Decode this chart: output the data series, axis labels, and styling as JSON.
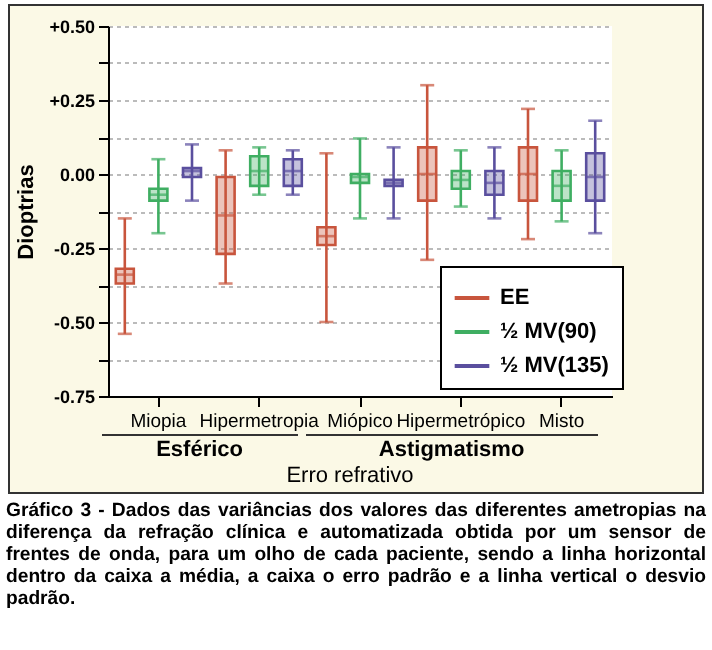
{
  "chart_data": {
    "type": "box",
    "ylabel": "Dioptrias",
    "xlabel": "Erro refrativo",
    "categories": [
      "Miopia",
      "Hipermetropia",
      "Miópico",
      "Hipermetrópico",
      "Misto"
    ],
    "series": [
      {
        "name": "EE",
        "color": "#c8553d",
        "boxes": [
          {
            "low": -0.54,
            "q1": -0.37,
            "median": -0.34,
            "q3": -0.32,
            "high": -0.15
          },
          {
            "low": -0.37,
            "q1": -0.27,
            "median": -0.14,
            "q3": -0.01,
            "high": 0.08
          },
          {
            "low": -0.5,
            "q1": -0.24,
            "median": -0.21,
            "q3": -0.18,
            "high": 0.07
          },
          {
            "low": -0.29,
            "q1": -0.09,
            "median": 0.0,
            "q3": 0.09,
            "high": 0.3
          },
          {
            "low": -0.22,
            "q1": -0.09,
            "median": 0.0,
            "q3": 0.09,
            "high": 0.22
          }
        ]
      },
      {
        "name": "½ MV(90)",
        "color": "#3fae62",
        "boxes": [
          {
            "low": -0.2,
            "q1": -0.09,
            "median": -0.07,
            "q3": -0.05,
            "high": 0.05
          },
          {
            "low": -0.07,
            "q1": -0.04,
            "median": 0.01,
            "q3": 0.06,
            "high": 0.09
          },
          {
            "low": -0.15,
            "q1": -0.03,
            "median": -0.01,
            "q3": 0.0,
            "high": 0.12
          },
          {
            "low": -0.11,
            "q1": -0.05,
            "median": -0.02,
            "q3": 0.01,
            "high": 0.08
          },
          {
            "low": -0.16,
            "q1": -0.09,
            "median": -0.04,
            "q3": 0.01,
            "high": 0.08
          }
        ]
      },
      {
        "name": "½ MV(135)",
        "color": "#5a4f9e",
        "boxes": [
          {
            "low": -0.09,
            "q1": -0.01,
            "median": 0.01,
            "q3": 0.02,
            "high": 0.1
          },
          {
            "low": -0.07,
            "q1": -0.04,
            "median": 0.01,
            "q3": 0.05,
            "high": 0.08
          },
          {
            "low": -0.15,
            "q1": -0.04,
            "median": -0.03,
            "q3": -0.02,
            "high": 0.09
          },
          {
            "low": -0.15,
            "q1": -0.07,
            "median": -0.03,
            "q3": 0.01,
            "high": 0.09
          },
          {
            "low": -0.2,
            "q1": -0.09,
            "median": -0.01,
            "q3": 0.07,
            "high": 0.18
          }
        ]
      }
    ],
    "ylim": [
      -0.75,
      0.5
    ],
    "yticks": [
      {
        "value": 0.5,
        "label": "+0.50"
      },
      {
        "value": 0.375,
        "label": null
      },
      {
        "value": 0.25,
        "label": "+0.25"
      },
      {
        "value": 0.125,
        "label": null
      },
      {
        "value": 0,
        "label": "0.00"
      },
      {
        "value": -0.125,
        "label": null
      },
      {
        "value": -0.25,
        "label": "-0.25"
      },
      {
        "value": -0.375,
        "label": null
      },
      {
        "value": -0.5,
        "label": "-0.50"
      },
      {
        "value": -0.625,
        "label": null
      },
      {
        "value": -0.75,
        "label": "-0.75"
      }
    ],
    "grid": "y",
    "legend": "bottom right",
    "annotations": [
      "Esférico",
      "Astigmatismo",
      "Gráfico 3 - Dados das variâncias dos valores das diferentes ametropias na diferença da refração clínica e automatizada obtida por um sensor de frentes de onda, para um olho de cada paciente, sendo a linha horizontal dentro da caixa a média, a caixa o erro padrão e a linha vertical o desvio padrão."
    ]
  }
}
